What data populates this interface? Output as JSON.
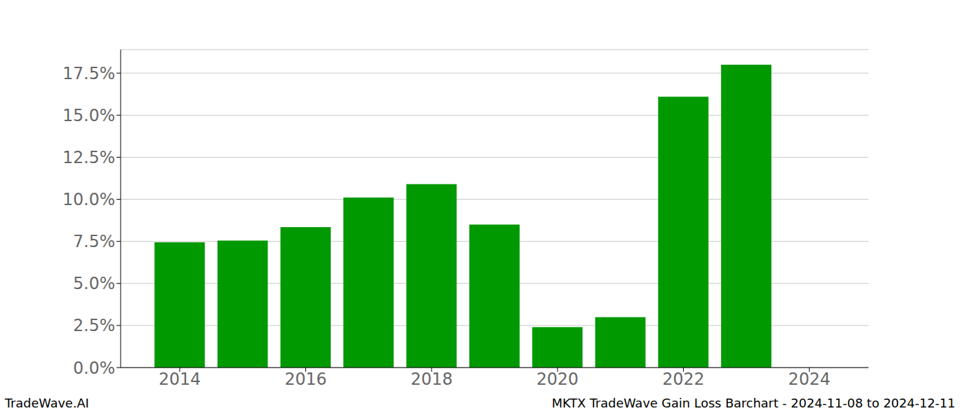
{
  "chart_data": {
    "type": "bar",
    "x": [
      2014,
      2015,
      2016,
      2017,
      2018,
      2019,
      2020,
      2021,
      2022,
      2023
    ],
    "values": [
      7.45,
      7.55,
      8.35,
      10.1,
      10.9,
      8.5,
      2.4,
      3.0,
      16.1,
      18.0
    ],
    "color": "#009900",
    "xlim": [
      2013.06,
      2024.94
    ],
    "xticks": [
      2014,
      2016,
      2018,
      2020,
      2022,
      2024
    ],
    "ylim": [
      0,
      18.9
    ],
    "yticks": [
      {
        "value": 0,
        "label": "0.0%"
      },
      {
        "value": 2.5,
        "label": "2.5%"
      },
      {
        "value": 5,
        "label": "5.0%"
      },
      {
        "value": 7.5,
        "label": "7.5%"
      },
      {
        "value": 10,
        "label": "10.0%"
      },
      {
        "value": 12.5,
        "label": "12.5%"
      },
      {
        "value": 15,
        "label": "15.0%"
      },
      {
        "value": 17.5,
        "label": "17.5%"
      }
    ],
    "grid": true,
    "annotations": [
      "TradeWave.AI",
      "MKTX TradeWave Gain Loss Barchart - 2024-11-08 to 2024-12-11"
    ]
  }
}
